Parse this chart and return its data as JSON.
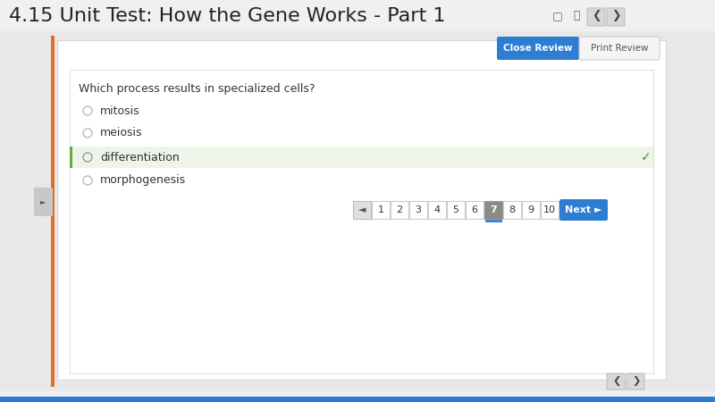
{
  "title": "4.15 Unit Test: How the Gene Works - Part 1",
  "title_fontsize": 16,
  "title_color": "#222222",
  "bg_color": "#e8e8e8",
  "question": "Which process results in specialized cells?",
  "options": [
    "mitosis",
    "meiosis",
    "differentiation",
    "morphogenesis"
  ],
  "correct_option": "differentiation",
  "correct_option_bg": "#eef4e8",
  "correct_option_border": "#6aaa3a",
  "checkmark_color": "#4a8a2a",
  "radio_color": "#bbbbbb",
  "option_text_color": "#333333",
  "btn_close_bg": "#2d7dd2",
  "btn_close_text": "Close Review",
  "btn_print_bg": "#f5f5f5",
  "btn_print_text": "Print Review",
  "btn_print_border": "#cccccc",
  "nav_pages": [
    "1",
    "2",
    "3",
    "4",
    "5",
    "6",
    "7",
    "8",
    "9",
    "10"
  ],
  "current_page": "7",
  "next_btn_bg": "#2d7dd2",
  "next_btn_text": "Next ►",
  "nav_arrow_bg": "#e0e0e0",
  "page_bg_selected": "#8a8a8a",
  "page_bg_normal": "#ffffff",
  "orange_bar_color": "#e07020",
  "bottom_bar_color": "#2d7dd2",
  "outer_bg": "#e8e8e8",
  "card_bg": "#ffffff",
  "card_border": "#d8d8d8",
  "header_bg": "#f0f0f0",
  "icon_color": "#555555"
}
